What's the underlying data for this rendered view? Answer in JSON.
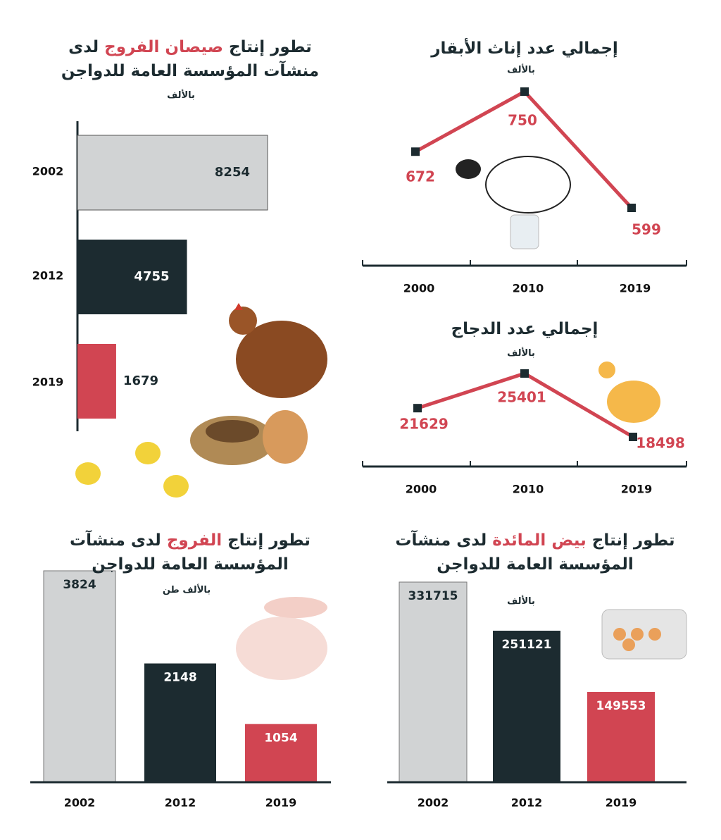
{
  "chart_data": [
    {
      "type": "hbar",
      "title": [
        "تطور إنتاج ",
        "صيصان الفروج",
        " لدى منشآت المؤسسة العامة للدواجن"
      ],
      "unit": "بالألف",
      "categories": [
        "2002",
        "2012",
        "2019"
      ],
      "values": [
        8254,
        4755,
        1679
      ],
      "colors": [
        "#d1d3d4",
        "#1c2b30",
        "#d14552"
      ]
    },
    {
      "type": "line",
      "title": [
        "إجمالي عدد إناث الأبقار"
      ],
      "unit": "بالألف",
      "categories": [
        "2000",
        "2010",
        "2019"
      ],
      "values": [
        672,
        750,
        599
      ],
      "color": "#d14552",
      "marker_color": "#1c2b30"
    },
    {
      "type": "line",
      "title": [
        "إجمالي عدد الدجاج"
      ],
      "unit": "بالألف",
      "categories": [
        "2000",
        "2010",
        "2019"
      ],
      "values": [
        21629,
        25401,
        18498
      ],
      "color": "#d14552",
      "marker_color": "#1c2b30"
    },
    {
      "type": "bar",
      "title": [
        "تطور إنتاج ",
        "الفروج",
        " لدى منشآت المؤسسة العامة للدواجن"
      ],
      "unit": "بالألف طن",
      "categories": [
        "2002",
        "2012",
        "2019"
      ],
      "values": [
        3824,
        2148,
        1054
      ],
      "colors": [
        "#d1d3d4",
        "#1c2b30",
        "#d14552"
      ]
    },
    {
      "type": "bar",
      "title": [
        "تطور إنتاج ",
        "بيض المائدة",
        " لدى منشآت المؤسسة العامة للدواجن"
      ],
      "unit": "بالألف",
      "categories": [
        "2002",
        "2012",
        "2019"
      ],
      "values": [
        331715,
        251121,
        149553
      ],
      "colors": [
        "#d1d3d4",
        "#1c2b30",
        "#d14552"
      ]
    }
  ]
}
